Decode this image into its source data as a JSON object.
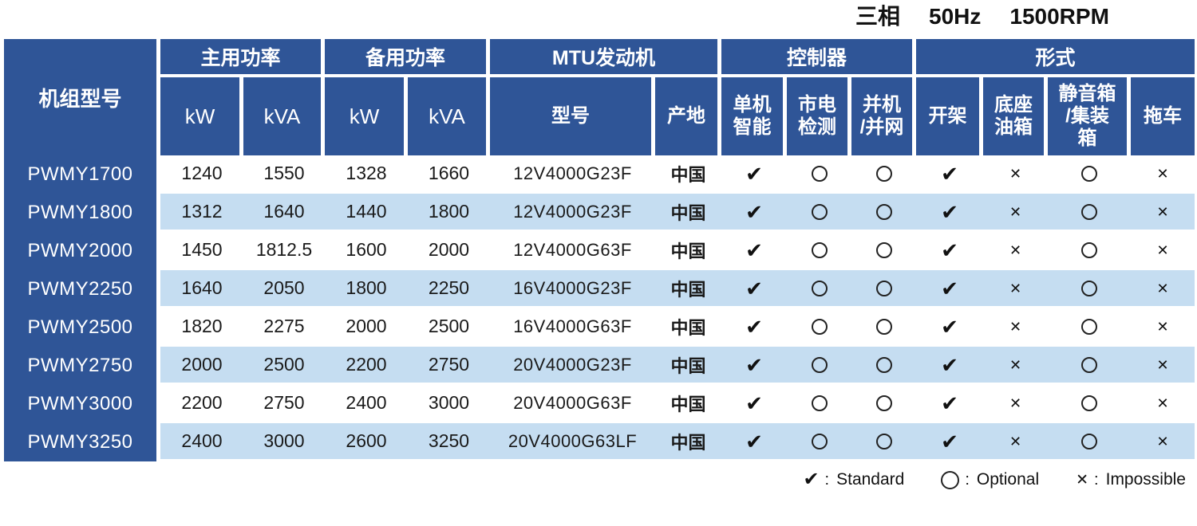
{
  "title": {
    "phase": "三相",
    "frequency": "50Hz",
    "speed": "1500RPM"
  },
  "colors": {
    "header_blue": "#2F5597",
    "row_alt_blue": "#C5DDF1",
    "row_white": "#FFFFFF",
    "text": "#1A1A1A"
  },
  "table": {
    "model_header": "机组型号",
    "groups": [
      {
        "label": "主用功率",
        "span": 2
      },
      {
        "label": "备用功率",
        "span": 2
      },
      {
        "label": "MTU发动机",
        "span": 2
      },
      {
        "label": "控制器",
        "span": 3
      },
      {
        "label": "形式",
        "span": 4
      }
    ],
    "subheaders": [
      {
        "label": "kW",
        "style": "latin"
      },
      {
        "label": "kVA",
        "style": "latin"
      },
      {
        "label": "kW",
        "style": "latin"
      },
      {
        "label": "kVA",
        "style": "latin"
      },
      {
        "label": "型号",
        "style": "cjk"
      },
      {
        "label": "产地",
        "style": "cjk"
      },
      {
        "label": "单机\n智能",
        "style": "cjk"
      },
      {
        "label": "市电\n检测",
        "style": "cjk"
      },
      {
        "label": "并机\n/并网",
        "style": "cjk"
      },
      {
        "label": "开架",
        "style": "cjk"
      },
      {
        "label": "底座\n油箱",
        "style": "cjk"
      },
      {
        "label": "静音箱\n/集装\n箱",
        "style": "cjk"
      },
      {
        "label": "拖车",
        "style": "cjk"
      }
    ],
    "rows": [
      {
        "model": "PWMY1700",
        "prime_kw": "1240",
        "prime_kva": "1550",
        "standby_kw": "1328",
        "standby_kva": "1660",
        "engine_model": "12V4000G23F",
        "origin": "中国",
        "symbols": [
          "check",
          "circle",
          "circle",
          "check",
          "cross",
          "circle",
          "cross"
        ]
      },
      {
        "model": "PWMY1800",
        "prime_kw": "1312",
        "prime_kva": "1640",
        "standby_kw": "1440",
        "standby_kva": "1800",
        "engine_model": "12V4000G23F",
        "origin": "中国",
        "symbols": [
          "check",
          "circle",
          "circle",
          "check",
          "cross",
          "circle",
          "cross"
        ]
      },
      {
        "model": "PWMY2000",
        "prime_kw": "1450",
        "prime_kva": "1812.5",
        "standby_kw": "1600",
        "standby_kva": "2000",
        "engine_model": "12V4000G63F",
        "origin": "中国",
        "symbols": [
          "check",
          "circle",
          "circle",
          "check",
          "cross",
          "circle",
          "cross"
        ]
      },
      {
        "model": "PWMY2250",
        "prime_kw": "1640",
        "prime_kva": "2050",
        "standby_kw": "1800",
        "standby_kva": "2250",
        "engine_model": "16V4000G23F",
        "origin": "中国",
        "symbols": [
          "check",
          "circle",
          "circle",
          "check",
          "cross",
          "circle",
          "cross"
        ]
      },
      {
        "model": "PWMY2500",
        "prime_kw": "1820",
        "prime_kva": "2275",
        "standby_kw": "2000",
        "standby_kva": "2500",
        "engine_model": "16V4000G63F",
        "origin": "中国",
        "symbols": [
          "check",
          "circle",
          "circle",
          "check",
          "cross",
          "circle",
          "cross"
        ]
      },
      {
        "model": "PWMY2750",
        "prime_kw": "2000",
        "prime_kva": "2500",
        "standby_kw": "2200",
        "standby_kva": "2750",
        "engine_model": "20V4000G23F",
        "origin": "中国",
        "symbols": [
          "check",
          "circle",
          "circle",
          "check",
          "cross",
          "circle",
          "cross"
        ]
      },
      {
        "model": "PWMY3000",
        "prime_kw": "2200",
        "prime_kva": "2750",
        "standby_kw": "2400",
        "standby_kva": "3000",
        "engine_model": "20V4000G63F",
        "origin": "中国",
        "symbols": [
          "check",
          "circle",
          "circle",
          "check",
          "cross",
          "circle",
          "cross"
        ]
      },
      {
        "model": "PWMY3250",
        "prime_kw": "2400",
        "prime_kva": "3000",
        "standby_kw": "2600",
        "standby_kva": "3250",
        "engine_model": "20V4000G63LF",
        "origin": "中国",
        "symbols": [
          "check",
          "circle",
          "circle",
          "check",
          "cross",
          "circle",
          "cross"
        ]
      }
    ]
  },
  "legend": {
    "separator": ":",
    "items": [
      {
        "symbol": "check",
        "label": "Standard"
      },
      {
        "symbol": "circle",
        "label": "Optional"
      },
      {
        "symbol": "cross",
        "label": "Impossible"
      }
    ]
  },
  "symbols": {
    "check_glyph": "✔",
    "cross_glyph": "✕"
  }
}
